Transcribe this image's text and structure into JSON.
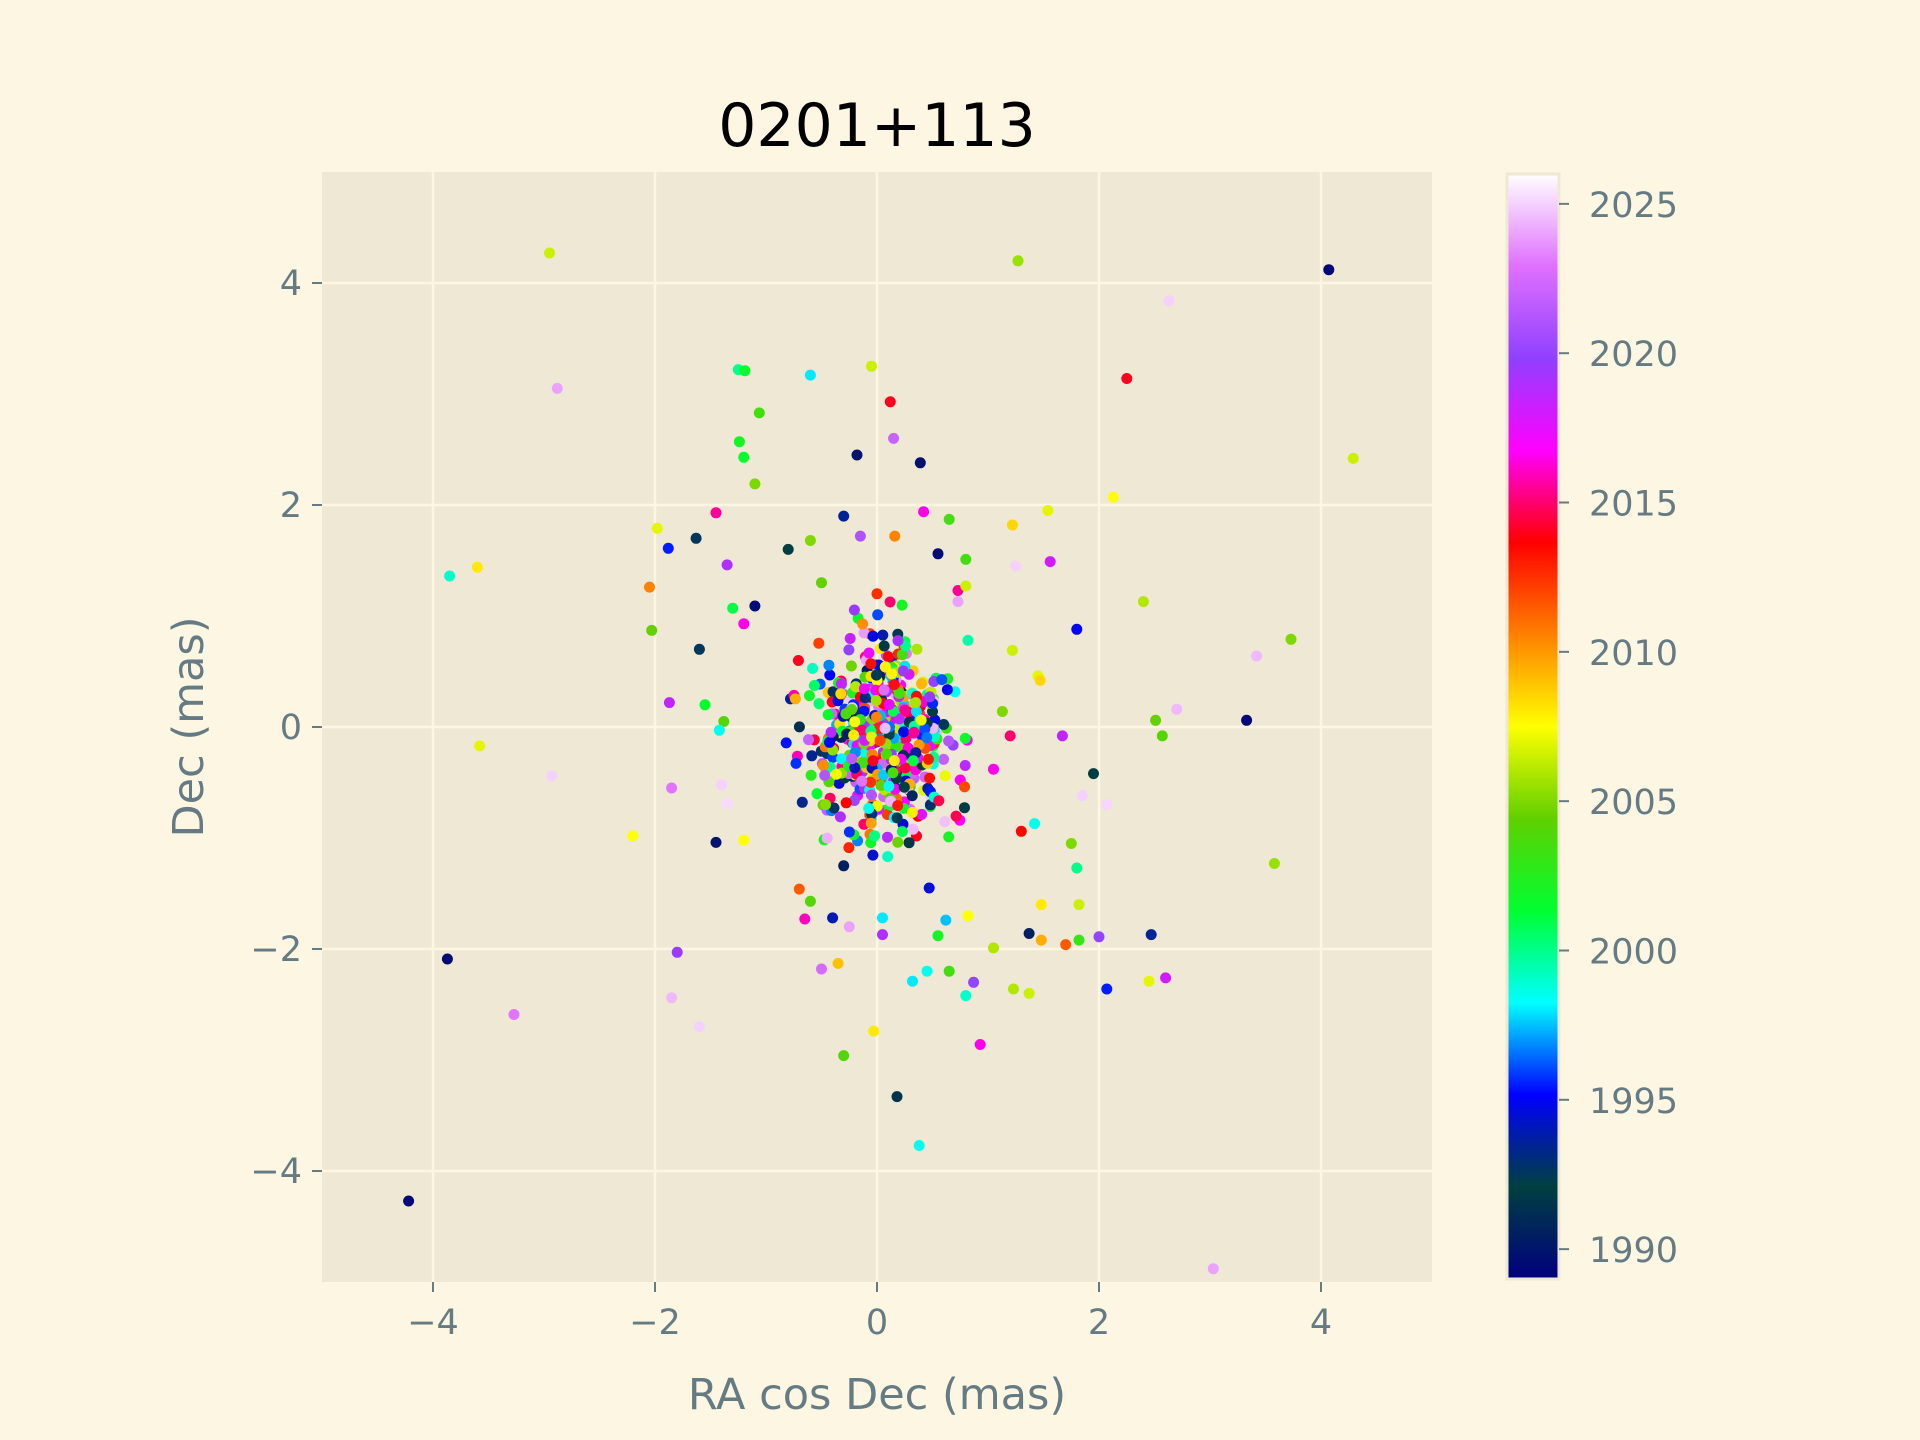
{
  "chart_data": {
    "type": "scatter",
    "title": "0201+113",
    "xlabel": "RA cos Dec (mas)",
    "ylabel": "Dec (mas)",
    "xlim": [
      -5,
      5
    ],
    "ylim": [
      -5,
      5
    ],
    "xticks": [
      -4,
      -2,
      0,
      2,
      4
    ],
    "yticks": [
      -4,
      -2,
      0,
      2,
      4
    ],
    "xtick_labels": [
      "−4",
      "−2",
      "0",
      "2",
      "4"
    ],
    "ytick_labels": [
      "−4",
      "−2",
      "0",
      "2",
      "4"
    ],
    "grid": true,
    "colormap": "gist_ncar",
    "colorbar": {
      "range": [
        1989,
        2026
      ],
      "ticks": [
        1990,
        1995,
        2000,
        2005,
        2010,
        2015,
        2020,
        2025
      ],
      "tick_labels": [
        "1990",
        "1995",
        "2000",
        "2005",
        "2010",
        "2015",
        "2020",
        "2025"
      ],
      "stops": [
        "#000080",
        "#004040",
        "#0000ff",
        "#00ffff",
        "#00ff30",
        "#60d000",
        "#ffff00",
        "#ff8000",
        "#ff0000",
        "#ff00ff",
        "#9040ff",
        "#e070ff",
        "#ffffff"
      ]
    },
    "points": [
      {
        "x": -4.22,
        "y": -4.27,
        "year": 1989.5
      },
      {
        "x": -3.87,
        "y": -2.09,
        "year": 1989.6
      },
      {
        "x": 4.07,
        "y": 4.12,
        "year": 1989.4
      },
      {
        "x": 3.33,
        "y": 0.06,
        "year": 1989.5
      },
      {
        "x": -2.95,
        "y": 4.27,
        "year": 2006.5
      },
      {
        "x": 1.27,
        "y": 4.2,
        "year": 2005.5
      },
      {
        "x": 2.63,
        "y": 3.84,
        "year": 2025.0
      },
      {
        "x": -2.88,
        "y": 3.05,
        "year": 2024.0
      },
      {
        "x": 2.25,
        "y": 3.14,
        "year": 2014.0
      },
      {
        "x": -1.25,
        "y": 3.22,
        "year": 2000.0
      },
      {
        "x": -1.19,
        "y": 3.21,
        "year": 2001.5
      },
      {
        "x": -0.6,
        "y": 3.17,
        "year": 1998.0
      },
      {
        "x": -0.05,
        "y": 3.25,
        "year": 2006.5
      },
      {
        "x": 0.12,
        "y": 2.93,
        "year": 2014.0
      },
      {
        "x": 0.15,
        "y": 2.6,
        "year": 2022.0
      },
      {
        "x": -1.06,
        "y": 2.83,
        "year": 2003.5
      },
      {
        "x": -1.24,
        "y": 2.57,
        "year": 2002.0
      },
      {
        "x": -1.2,
        "y": 2.43,
        "year": 2001.5
      },
      {
        "x": -0.18,
        "y": 2.45,
        "year": 1990.0
      },
      {
        "x": 0.39,
        "y": 2.38,
        "year": 1989.8
      },
      {
        "x": 4.29,
        "y": 2.42,
        "year": 2006.5
      },
      {
        "x": -1.1,
        "y": 2.19,
        "year": 2005.0
      },
      {
        "x": -1.45,
        "y": 1.93,
        "year": 2015.5
      },
      {
        "x": 0.42,
        "y": 1.94,
        "year": 2016.5
      },
      {
        "x": 0.65,
        "y": 1.87,
        "year": 2003.5
      },
      {
        "x": 1.54,
        "y": 1.95,
        "year": 2007.0
      },
      {
        "x": 2.13,
        "y": 2.07,
        "year": 2007.5
      },
      {
        "x": -1.63,
        "y": 1.7,
        "year": 1992.5
      },
      {
        "x": -1.88,
        "y": 1.61,
        "year": 1995.5
      },
      {
        "x": -1.98,
        "y": 1.79,
        "year": 2007.0
      },
      {
        "x": -0.3,
        "y": 1.9,
        "year": 1993.5
      },
      {
        "x": 1.22,
        "y": 1.82,
        "year": 2008.5
      },
      {
        "x": -0.8,
        "y": 1.6,
        "year": 1992.0
      },
      {
        "x": -0.6,
        "y": 1.68,
        "year": 2005.0
      },
      {
        "x": -0.15,
        "y": 1.72,
        "year": 2021.0
      },
      {
        "x": 0.16,
        "y": 1.72,
        "year": 2010.5
      },
      {
        "x": 0.55,
        "y": 1.56,
        "year": 1989.6
      },
      {
        "x": 0.8,
        "y": 1.51,
        "year": 2003.5
      },
      {
        "x": 1.25,
        "y": 1.45,
        "year": 2025.0
      },
      {
        "x": 1.56,
        "y": 1.49,
        "year": 2018.0
      },
      {
        "x": -3.85,
        "y": 1.36,
        "year": 1999.0
      },
      {
        "x": -3.6,
        "y": 1.44,
        "year": 2008.0
      },
      {
        "x": -1.35,
        "y": 1.46,
        "year": 2019.0
      },
      {
        "x": -2.05,
        "y": 1.26,
        "year": 2010.5
      },
      {
        "x": 0.73,
        "y": 1.13,
        "year": 2024.0
      },
      {
        "x": 0.73,
        "y": 1.23,
        "year": 2015.5
      },
      {
        "x": 2.4,
        "y": 1.13,
        "year": 2006.0
      },
      {
        "x": -1.3,
        "y": 1.07,
        "year": 2001.0
      },
      {
        "x": -1.1,
        "y": 1.09,
        "year": 1989.6
      },
      {
        "x": -0.5,
        "y": 1.3,
        "year": 2004.5
      },
      {
        "x": 0.0,
        "y": 1.2,
        "year": 2012.5
      },
      {
        "x": 0.8,
        "y": 1.27,
        "year": 2006.5
      },
      {
        "x": -2.03,
        "y": 0.87,
        "year": 2004.5
      },
      {
        "x": -1.2,
        "y": 0.93,
        "year": 2016.5
      },
      {
        "x": 1.8,
        "y": 0.88,
        "year": 1995.0
      },
      {
        "x": 3.73,
        "y": 0.79,
        "year": 2005.0
      },
      {
        "x": 3.42,
        "y": 0.64,
        "year": 2024.5
      },
      {
        "x": -1.6,
        "y": 0.7,
        "year": 1992.5
      },
      {
        "x": 1.22,
        "y": 0.69,
        "year": 2006.5
      },
      {
        "x": 0.82,
        "y": 0.78,
        "year": 1999.5
      },
      {
        "x": 1.45,
        "y": 0.46,
        "year": 2007.0
      },
      {
        "x": 1.47,
        "y": 0.42,
        "year": 2008.5
      },
      {
        "x": -1.87,
        "y": 0.22,
        "year": 2018.5
      },
      {
        "x": -1.55,
        "y": 0.2,
        "year": 2001.5
      },
      {
        "x": -1.38,
        "y": 0.05,
        "year": 2004.0
      },
      {
        "x": -1.42,
        "y": -0.03,
        "year": 1998.5
      },
      {
        "x": 2.51,
        "y": 0.06,
        "year": 2004.5
      },
      {
        "x": 2.57,
        "y": -0.08,
        "year": 2004.0
      },
      {
        "x": 2.7,
        "y": 0.16,
        "year": 2024.5
      },
      {
        "x": 1.13,
        "y": 0.14,
        "year": 2005.0
      },
      {
        "x": 1.2,
        "y": -0.08,
        "year": 2015.0
      },
      {
        "x": 1.67,
        "y": -0.08,
        "year": 2018.5
      },
      {
        "x": -3.58,
        "y": -0.17,
        "year": 2007.0
      },
      {
        "x": -2.93,
        "y": -0.44,
        "year": 2025.0
      },
      {
        "x": -1.85,
        "y": -0.55,
        "year": 2023.0
      },
      {
        "x": -1.4,
        "y": -0.52,
        "year": 2025.0
      },
      {
        "x": -1.35,
        "y": -0.69,
        "year": 2025.2
      },
      {
        "x": 1.95,
        "y": -0.42,
        "year": 1992.0
      },
      {
        "x": 1.85,
        "y": -0.62,
        "year": 2025.0
      },
      {
        "x": 2.07,
        "y": -0.7,
        "year": 2025.1
      },
      {
        "x": 1.05,
        "y": -0.38,
        "year": 2016.5
      },
      {
        "x": -2.2,
        "y": -0.98,
        "year": 2007.5
      },
      {
        "x": -1.45,
        "y": -1.04,
        "year": 1990.0
      },
      {
        "x": -1.2,
        "y": -1.02,
        "year": 2007.5
      },
      {
        "x": 1.3,
        "y": -0.94,
        "year": 2013.5
      },
      {
        "x": 1.75,
        "y": -1.05,
        "year": 2005.0
      },
      {
        "x": 1.8,
        "y": -1.27,
        "year": 2000.0
      },
      {
        "x": 3.58,
        "y": -1.23,
        "year": 2005.5
      },
      {
        "x": 1.42,
        "y": -0.87,
        "year": 1998.5
      },
      {
        "x": -0.7,
        "y": -1.46,
        "year": 2011.5
      },
      {
        "x": -0.3,
        "y": -1.25,
        "year": 1990.5
      },
      {
        "x": -0.6,
        "y": -1.57,
        "year": 2004.0
      },
      {
        "x": -0.65,
        "y": -1.73,
        "year": 2016.0
      },
      {
        "x": -0.4,
        "y": -1.72,
        "year": 1994.0
      },
      {
        "x": -0.25,
        "y": -1.8,
        "year": 2024.0
      },
      {
        "x": 0.05,
        "y": -1.72,
        "year": 1998.0
      },
      {
        "x": 0.05,
        "y": -1.87,
        "year": 2019.0
      },
      {
        "x": 0.47,
        "y": -1.45,
        "year": 1994.5
      },
      {
        "x": 0.55,
        "y": -1.88,
        "year": 2002.0
      },
      {
        "x": 0.62,
        "y": -1.74,
        "year": 1997.5
      },
      {
        "x": 0.82,
        "y": -1.7,
        "year": 2007.5
      },
      {
        "x": 1.05,
        "y": -1.99,
        "year": 2006.0
      },
      {
        "x": 1.37,
        "y": -1.86,
        "year": 1990.5
      },
      {
        "x": 1.48,
        "y": -1.92,
        "year": 2009.5
      },
      {
        "x": 1.48,
        "y": -1.6,
        "year": 2008.0
      },
      {
        "x": 1.7,
        "y": -1.96,
        "year": 2011.5
      },
      {
        "x": 1.82,
        "y": -1.6,
        "year": 2006.5
      },
      {
        "x": 1.82,
        "y": -1.92,
        "year": 2003.0
      },
      {
        "x": 2.0,
        "y": -1.89,
        "year": 2020.0
      },
      {
        "x": 2.47,
        "y": -1.87,
        "year": 1993.5
      },
      {
        "x": -1.8,
        "y": -2.03,
        "year": 2019.5
      },
      {
        "x": -1.85,
        "y": -2.44,
        "year": 2024.5
      },
      {
        "x": -1.6,
        "y": -2.7,
        "year": 2025.0
      },
      {
        "x": -3.27,
        "y": -2.59,
        "year": 2023.0
      },
      {
        "x": -0.5,
        "y": -2.18,
        "year": 2022.5
      },
      {
        "x": -0.35,
        "y": -2.13,
        "year": 2009.0
      },
      {
        "x": 0.32,
        "y": -2.29,
        "year": 1998.0
      },
      {
        "x": 0.45,
        "y": -2.2,
        "year": 1998.5
      },
      {
        "x": 0.65,
        "y": -2.2,
        "year": 2003.5
      },
      {
        "x": 0.8,
        "y": -2.42,
        "year": 1999.0
      },
      {
        "x": 0.87,
        "y": -2.3,
        "year": 2020.0
      },
      {
        "x": 1.23,
        "y": -2.36,
        "year": 2006.0
      },
      {
        "x": 1.37,
        "y": -2.4,
        "year": 2006.5
      },
      {
        "x": 2.07,
        "y": -2.36,
        "year": 1995.5
      },
      {
        "x": 2.45,
        "y": -2.29,
        "year": 2007.0
      },
      {
        "x": 2.6,
        "y": -2.26,
        "year": 2018.0
      },
      {
        "x": -0.3,
        "y": -2.96,
        "year": 2004.0
      },
      {
        "x": -0.03,
        "y": -2.74,
        "year": 2008.0
      },
      {
        "x": 0.93,
        "y": -2.86,
        "year": 2016.5
      },
      {
        "x": 0.18,
        "y": -3.33,
        "year": 1991.5
      },
      {
        "x": 0.38,
        "y": -3.77,
        "year": 1998.5
      },
      {
        "x": 3.03,
        "y": -4.88,
        "year": 2024.0
      }
    ],
    "cluster": {
      "mean_x": 0.05,
      "mean_y": -0.05,
      "sigma_x": 0.42,
      "sigma_y": 0.62,
      "count": 560,
      "year_range": [
        1990,
        2025
      ]
    }
  }
}
